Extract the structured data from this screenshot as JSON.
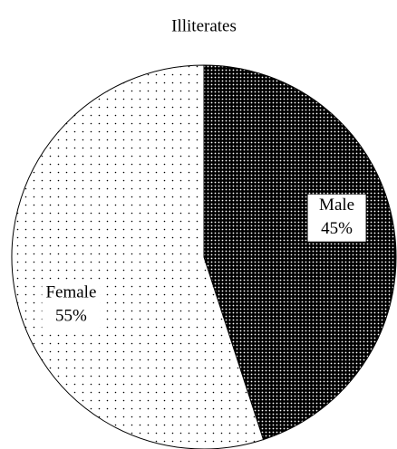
{
  "chart_data": {
    "type": "pie",
    "title": "Illiterates",
    "categories": [
      "Male",
      "Female"
    ],
    "values": [
      45,
      55
    ],
    "value_labels": [
      "45%",
      "55%"
    ],
    "colors": [
      "#000000",
      "#ffffff"
    ]
  }
}
